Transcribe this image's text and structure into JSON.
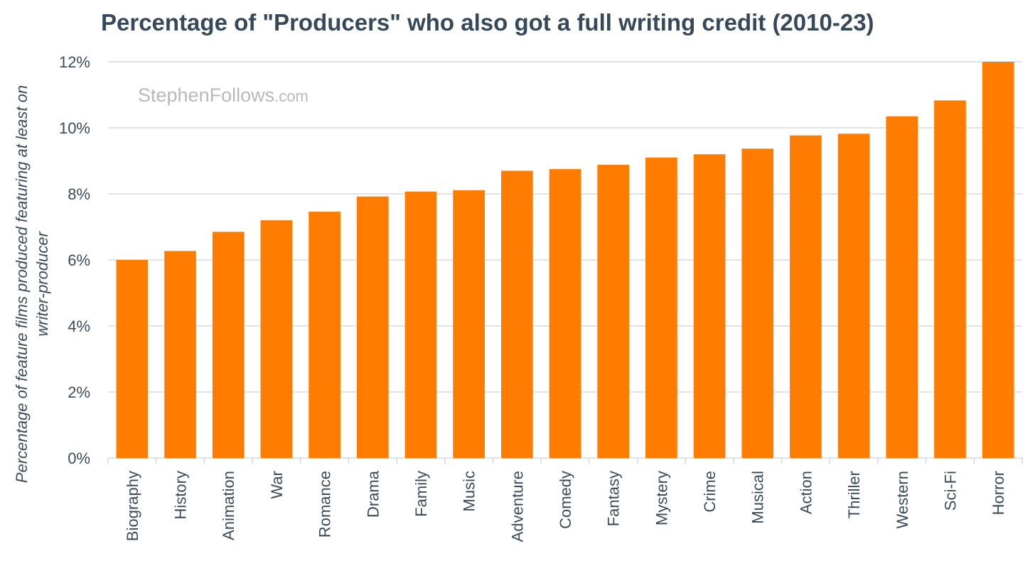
{
  "chart_data": {
    "type": "bar",
    "title": "Percentage of \"Producers\" who also got a full writing credit (2010-23)",
    "ylabel_lines": [
      "Percentage of feature films produced featuring at least on",
      "writer-producer"
    ],
    "xlabel": "",
    "watermark": {
      "main": "StephenFollows",
      "suffix": ".com"
    },
    "categories": [
      "Biography",
      "History",
      "Animation",
      "War",
      "Romance",
      "Drama",
      "Family",
      "Music",
      "Adventure",
      "Comedy",
      "Fantasy",
      "Mystery",
      "Crime",
      "Musical",
      "Action",
      "Thriller",
      "Western",
      "Sci-Fi",
      "Horror"
    ],
    "values": [
      6.0,
      6.27,
      6.85,
      7.2,
      7.46,
      7.92,
      8.07,
      8.11,
      8.7,
      8.75,
      8.88,
      9.1,
      9.2,
      9.37,
      9.77,
      9.82,
      10.35,
      10.83,
      12.0
    ],
    "ylim": [
      0,
      12
    ],
    "yticks": [
      0,
      2,
      4,
      6,
      8,
      10,
      12
    ],
    "ytick_suffix": "%",
    "grid": true,
    "bar_color": "#ff7c00"
  }
}
